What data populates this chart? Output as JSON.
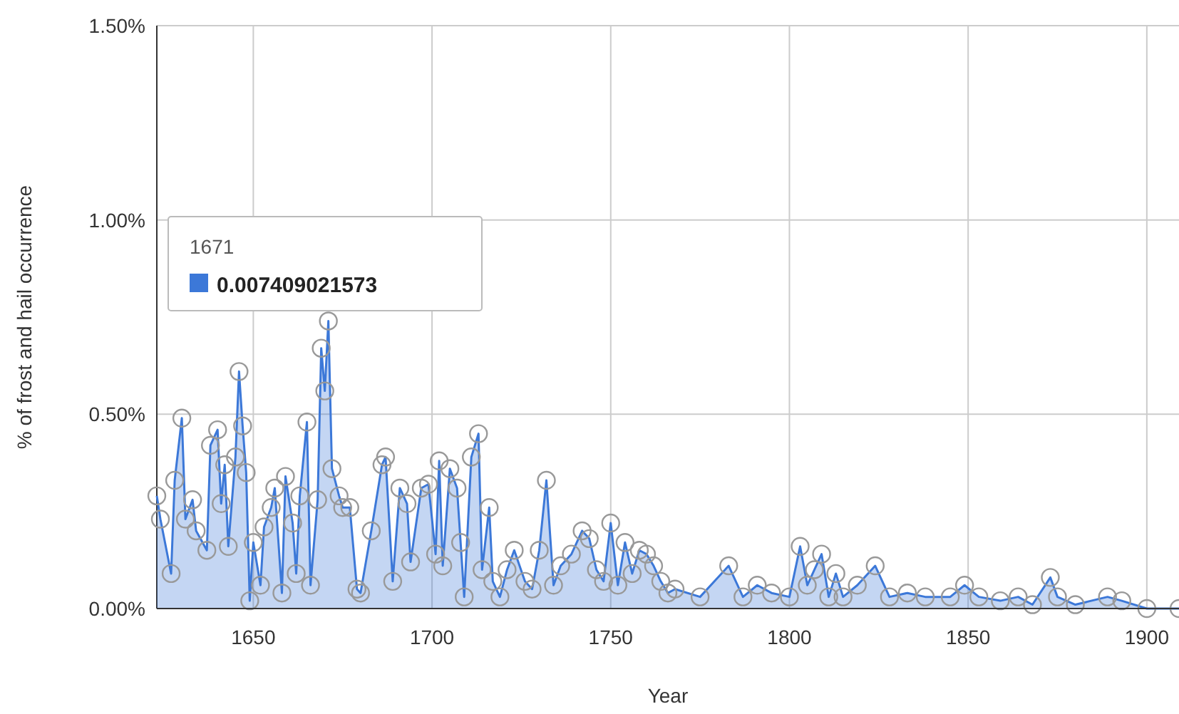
{
  "chart_data": {
    "type": "area",
    "xlabel": "Year",
    "ylabel": "% of frost and hail occurrence",
    "xlim": [
      1623,
      1909
    ],
    "ylim": [
      0,
      1.5
    ],
    "xticks": [
      1650,
      1700,
      1750,
      1800,
      1850,
      1900
    ],
    "yticks": [
      {
        "value": 0,
        "label": "0.00%"
      },
      {
        "value": 0.5,
        "label": "0.50%"
      },
      {
        "value": 1,
        "label": "1.00%"
      },
      {
        "value": 1.5,
        "label": "1.50%"
      }
    ],
    "grid": true,
    "marker": "circle",
    "annotations": [
      "1671",
      "0.007409021573"
    ],
    "series": [
      {
        "color": "#3c78d8",
        "x": [
          1623,
          1624,
          1627,
          1628,
          1630,
          1631,
          1633,
          1634,
          1637,
          1638,
          1640,
          1641,
          1642,
          1643,
          1645,
          1646,
          1647,
          1648,
          1649,
          1650,
          1652,
          1653,
          1655,
          1656,
          1658,
          1659,
          1661,
          1662,
          1663,
          1665,
          1666,
          1668,
          1669,
          1670,
          1671,
          1672,
          1674,
          1675,
          1677,
          1679,
          1680,
          1683,
          1686,
          1687,
          1689,
          1691,
          1693,
          1694,
          1697,
          1699,
          1701,
          1702,
          1703,
          1705,
          1707,
          1708,
          1709,
          1711,
          1713,
          1714,
          1716,
          1717,
          1719,
          1721,
          1723,
          1726,
          1728,
          1730,
          1732,
          1734,
          1736,
          1739,
          1742,
          1744,
          1746,
          1748,
          1750,
          1752,
          1754,
          1756,
          1758,
          1760,
          1762,
          1764,
          1766,
          1768,
          1775,
          1783,
          1787,
          1791,
          1795,
          1800,
          1803,
          1805,
          1807,
          1809,
          1811,
          1813,
          1815,
          1819,
          1824,
          1828,
          1833,
          1838,
          1845,
          1849,
          1853,
          1859,
          1864,
          1868,
          1873,
          1875,
          1880,
          1889,
          1893,
          1900,
          1909
        ],
        "values": [
          0.29,
          0.23,
          0.09,
          0.33,
          0.49,
          0.23,
          0.28,
          0.2,
          0.15,
          0.42,
          0.46,
          0.27,
          0.37,
          0.16,
          0.39,
          0.61,
          0.47,
          0.35,
          0.02,
          0.17,
          0.06,
          0.21,
          0.26,
          0.31,
          0.04,
          0.34,
          0.22,
          0.09,
          0.29,
          0.48,
          0.06,
          0.28,
          0.67,
          0.56,
          0.74,
          0.36,
          0.29,
          0.26,
          0.26,
          0.05,
          0.04,
          0.2,
          0.37,
          0.39,
          0.07,
          0.31,
          0.27,
          0.12,
          0.31,
          0.32,
          0.14,
          0.38,
          0.11,
          0.36,
          0.31,
          0.17,
          0.03,
          0.39,
          0.45,
          0.1,
          0.26,
          0.07,
          0.03,
          0.1,
          0.15,
          0.07,
          0.05,
          0.15,
          0.33,
          0.06,
          0.11,
          0.14,
          0.2,
          0.18,
          0.1,
          0.07,
          0.22,
          0.06,
          0.17,
          0.09,
          0.15,
          0.14,
          0.11,
          0.07,
          0.04,
          0.05,
          0.03,
          0.11,
          0.03,
          0.06,
          0.04,
          0.03,
          0.16,
          0.06,
          0.1,
          0.14,
          0.03,
          0.09,
          0.03,
          0.06,
          0.11,
          0.03,
          0.04,
          0.03,
          0.03,
          0.06,
          0.03,
          0.02,
          0.03,
          0.01,
          0.08,
          0.03,
          0.01,
          0.03,
          0.02,
          0,
          0
        ]
      }
    ]
  }
}
